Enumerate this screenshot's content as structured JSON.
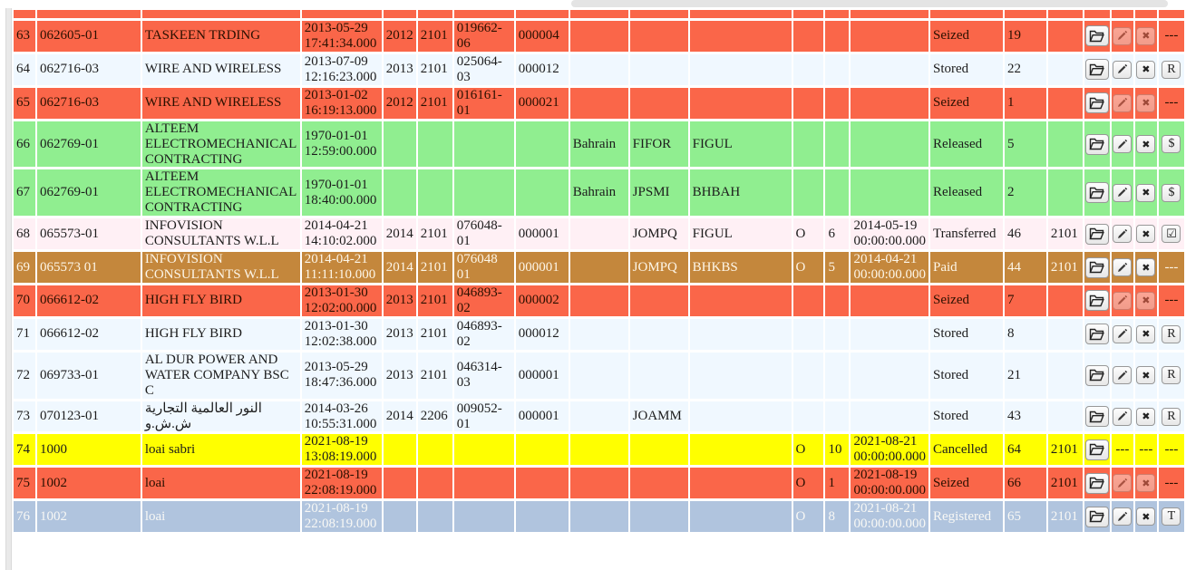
{
  "page": {
    "vertical_scrollbar": "left-vertical-scrollbar",
    "horizontal_scrollbar": "top-horizontal-scrollbar"
  },
  "table": {
    "rows": [
      {
        "partial": true,
        "num": "",
        "id": "",
        "name": "",
        "datetime": "",
        "year": "",
        "office": "",
        "ref": "",
        "item": "",
        "country": "",
        "code1": "",
        "code2": "",
        "flag": "",
        "qty": "",
        "date2": "",
        "status": "",
        "count": "",
        "extra": "",
        "row_color": "#fa6649",
        "text_color": "#1c1c1c",
        "actions": [
          {
            "type": "text",
            "label": ""
          },
          {
            "type": "text",
            "label": ""
          },
          {
            "type": "text",
            "label": ""
          },
          {
            "type": "text",
            "label": ""
          }
        ]
      },
      {
        "num": "63",
        "id": "062605-01",
        "name": "TASKEEN TRDING",
        "datetime": "2013-05-29 17:41:34.000",
        "year": "2012",
        "office": "2101",
        "ref": "019662-06",
        "item": "000004",
        "country": "",
        "code1": "",
        "code2": "",
        "flag": "",
        "qty": "",
        "date2": "",
        "status": "Seized",
        "count": "19",
        "extra": "",
        "row_color": "#fa6649",
        "text_color": "#2a1000",
        "actions": [
          {
            "type": "button",
            "icon": "folder-open-icon",
            "name": "open-folder-button",
            "disabled": false
          },
          {
            "type": "button",
            "icon": "pencil-icon",
            "name": "edit-button",
            "disabled": true
          },
          {
            "type": "button",
            "icon": "x-icon",
            "name": "delete-button",
            "disabled": true
          },
          {
            "type": "text",
            "label": "---"
          }
        ]
      },
      {
        "num": "64",
        "id": "062716-03",
        "name": "WIRE AND WIRELESS",
        "datetime": "2013-07-09 12:16:23.000",
        "year": "2013",
        "office": "2101",
        "ref": "025064-03",
        "item": "000012",
        "country": "",
        "code1": "",
        "code2": "",
        "flag": "",
        "qty": "",
        "date2": "",
        "status": "Stored",
        "count": "22",
        "extra": "",
        "row_color": "#f0f8ff",
        "text_color": "#1c1c1c",
        "actions": [
          {
            "type": "button",
            "icon": "folder-open-icon",
            "name": "open-folder-button",
            "disabled": false
          },
          {
            "type": "button",
            "icon": "pencil-icon",
            "name": "edit-button",
            "disabled": false
          },
          {
            "type": "button",
            "icon": "x-icon",
            "name": "delete-button",
            "disabled": false
          },
          {
            "type": "button",
            "icon": "r-icon",
            "name": "r-action-button",
            "disabled": false
          }
        ]
      },
      {
        "num": "65",
        "id": "062716-03",
        "name": "WIRE AND WIRELESS",
        "datetime": "2013-01-02 16:19:13.000",
        "year": "2012",
        "office": "2101",
        "ref": "016161-01",
        "item": "000021",
        "country": "",
        "code1": "",
        "code2": "",
        "flag": "",
        "qty": "",
        "date2": "",
        "status": "Seized",
        "count": "1",
        "extra": "",
        "row_color": "#fa6649",
        "text_color": "#2a1000",
        "actions": [
          {
            "type": "button",
            "icon": "folder-open-icon",
            "name": "open-folder-button",
            "disabled": false
          },
          {
            "type": "button",
            "icon": "pencil-icon",
            "name": "edit-button",
            "disabled": true
          },
          {
            "type": "button",
            "icon": "x-icon",
            "name": "delete-button",
            "disabled": true
          },
          {
            "type": "text",
            "label": "---"
          }
        ]
      },
      {
        "num": "66",
        "id": "062769-01",
        "name": "ALTEEM ELECTROMECHANICAL CONTRACTING",
        "datetime": "1970-01-01 12:59:00.000",
        "year": "",
        "office": "",
        "ref": "",
        "item": "",
        "country": "Bahrain",
        "code1": "FIFOR",
        "code2": "FIGUL",
        "flag": "",
        "qty": "",
        "date2": "",
        "status": "Released",
        "count": "5",
        "extra": "",
        "row_color": "#90ee90",
        "text_color": "#1c1c1c",
        "actions": [
          {
            "type": "button",
            "icon": "folder-open-icon",
            "name": "open-folder-button",
            "disabled": false
          },
          {
            "type": "button",
            "icon": "pencil-icon",
            "name": "edit-button",
            "disabled": false
          },
          {
            "type": "button",
            "icon": "x-icon",
            "name": "delete-button",
            "disabled": false
          },
          {
            "type": "button",
            "icon": "dollar-icon",
            "name": "payment-action-button",
            "disabled": false
          }
        ]
      },
      {
        "num": "67",
        "id": "062769-01",
        "name": "ALTEEM ELECTROMECHANICAL CONTRACTING",
        "datetime": "1970-01-01 18:40:00.000",
        "year": "",
        "office": "",
        "ref": "",
        "item": "",
        "country": "Bahrain",
        "code1": "JPSMI",
        "code2": "BHBAH",
        "flag": "",
        "qty": "",
        "date2": "",
        "status": "Released",
        "count": "2",
        "extra": "",
        "row_color": "#90ee90",
        "text_color": "#1c1c1c",
        "actions": [
          {
            "type": "button",
            "icon": "folder-open-icon",
            "name": "open-folder-button",
            "disabled": false
          },
          {
            "type": "button",
            "icon": "pencil-icon",
            "name": "edit-button",
            "disabled": false
          },
          {
            "type": "button",
            "icon": "x-icon",
            "name": "delete-button",
            "disabled": false
          },
          {
            "type": "button",
            "icon": "dollar-icon",
            "name": "payment-action-button",
            "disabled": false
          }
        ]
      },
      {
        "num": "68",
        "id": "065573-01",
        "name": "INFOVISION CONSULTANTS W.L.L",
        "datetime": "2014-04-21 14:10:02.000",
        "year": "2014",
        "office": "2101",
        "ref": "076048-01",
        "item": "000001",
        "country": "",
        "code1": "JOMPQ",
        "code2": "FIGUL",
        "flag": "O",
        "qty": "6",
        "date2": "2014-05-19 00:00:00.000",
        "status": "Transferred",
        "count": "46",
        "extra": "2101",
        "row_color": "#fff0f5",
        "text_color": "#1c1c1c",
        "actions": [
          {
            "type": "button",
            "icon": "folder-open-icon",
            "name": "open-folder-button",
            "disabled": false
          },
          {
            "type": "button",
            "icon": "pencil-icon",
            "name": "edit-button",
            "disabled": false
          },
          {
            "type": "button",
            "icon": "x-icon",
            "name": "delete-button",
            "disabled": false
          },
          {
            "type": "button",
            "icon": "check-icon",
            "name": "check-action-button",
            "disabled": false
          }
        ]
      },
      {
        "num": "69",
        "id": "065573 01",
        "name": "INFOVISION CONSULTANTS W.L.L",
        "datetime": "2014-04-21 11:11:10.000",
        "year": "2014",
        "office": "2101",
        "ref": "076048 01",
        "item": "000001",
        "country": "",
        "code1": "JOMPQ",
        "code2": "BHKBS",
        "flag": "O",
        "qty": "5",
        "date2": "2014-04-21 00:00:00.000",
        "status": "Paid",
        "count": "44",
        "extra": "2101",
        "row_color": "#c4873c",
        "text_color": "#fdf6e8",
        "actions": [
          {
            "type": "button",
            "icon": "folder-open-icon",
            "name": "open-folder-button",
            "disabled": false
          },
          {
            "type": "button",
            "icon": "pencil-icon",
            "name": "edit-button",
            "disabled": false
          },
          {
            "type": "button",
            "icon": "x-icon",
            "name": "delete-button",
            "disabled": false
          },
          {
            "type": "text",
            "label": "---"
          }
        ]
      },
      {
        "num": "70",
        "id": "066612-02",
        "name": "HIGH FLY BIRD",
        "datetime": "2013-01-30 12:02:00.000",
        "year": "2013",
        "office": "2101",
        "ref": "046893-02",
        "item": "000002",
        "country": "",
        "code1": "",
        "code2": "",
        "flag": "",
        "qty": "",
        "date2": "",
        "status": "Seized",
        "count": "7",
        "extra": "",
        "row_color": "#fa6649",
        "text_color": "#2a1000",
        "actions": [
          {
            "type": "button",
            "icon": "folder-open-icon",
            "name": "open-folder-button",
            "disabled": false
          },
          {
            "type": "button",
            "icon": "pencil-icon",
            "name": "edit-button",
            "disabled": true
          },
          {
            "type": "button",
            "icon": "x-icon",
            "name": "delete-button",
            "disabled": true
          },
          {
            "type": "text",
            "label": "---"
          }
        ]
      },
      {
        "num": "71",
        "id": "066612-02",
        "name": "HIGH FLY BIRD",
        "datetime": "2013-01-30 12:02:38.000",
        "year": "2013",
        "office": "2101",
        "ref": "046893-02",
        "item": "000012",
        "country": "",
        "code1": "",
        "code2": "",
        "flag": "",
        "qty": "",
        "date2": "",
        "status": "Stored",
        "count": "8",
        "extra": "",
        "row_color": "#f0f8ff",
        "text_color": "#1c1c1c",
        "actions": [
          {
            "type": "button",
            "icon": "folder-open-icon",
            "name": "open-folder-button",
            "disabled": false
          },
          {
            "type": "button",
            "icon": "pencil-icon",
            "name": "edit-button",
            "disabled": false
          },
          {
            "type": "button",
            "icon": "x-icon",
            "name": "delete-button",
            "disabled": false
          },
          {
            "type": "button",
            "icon": "r-icon",
            "name": "r-action-button",
            "disabled": false
          }
        ]
      },
      {
        "num": "72",
        "id": "069733-01",
        "name": "AL DUR POWER AND WATER COMPANY BSC C",
        "datetime": "2013-05-29 18:47:36.000",
        "year": "2013",
        "office": "2101",
        "ref": "046314-03",
        "item": "000001",
        "country": "",
        "code1": "",
        "code2": "",
        "flag": "",
        "qty": "",
        "date2": "",
        "status": "Stored",
        "count": "21",
        "extra": "",
        "row_color": "#f0f8ff",
        "text_color": "#1c1c1c",
        "actions": [
          {
            "type": "button",
            "icon": "folder-open-icon",
            "name": "open-folder-button",
            "disabled": false
          },
          {
            "type": "button",
            "icon": "pencil-icon",
            "name": "edit-button",
            "disabled": false
          },
          {
            "type": "button",
            "icon": "x-icon",
            "name": "delete-button",
            "disabled": false
          },
          {
            "type": "button",
            "icon": "r-icon",
            "name": "r-action-button",
            "disabled": false
          }
        ]
      },
      {
        "num": "73",
        "id": "070123-01",
        "name": "النور العالمية التجارية ش.ش.و",
        "datetime": "2014-03-26 10:55:31.000",
        "year": "2014",
        "office": "2206",
        "ref": "009052-01",
        "item": "000001",
        "country": "",
        "code1": "JOAMM",
        "code2": "",
        "flag": "",
        "qty": "",
        "date2": "",
        "status": "Stored",
        "count": "43",
        "extra": "",
        "row_color": "#f0f8ff",
        "text_color": "#1c1c1c",
        "actions": [
          {
            "type": "button",
            "icon": "folder-open-icon",
            "name": "open-folder-button",
            "disabled": false
          },
          {
            "type": "button",
            "icon": "pencil-icon",
            "name": "edit-button",
            "disabled": false
          },
          {
            "type": "button",
            "icon": "x-icon",
            "name": "delete-button",
            "disabled": false
          },
          {
            "type": "button",
            "icon": "r-icon",
            "name": "r-action-button",
            "disabled": false
          }
        ]
      },
      {
        "num": "74",
        "id": "1000",
        "name": "loai sabri",
        "datetime": "2021-08-19 13:08:19.000",
        "year": "",
        "office": "",
        "ref": "",
        "item": "",
        "country": "",
        "code1": "",
        "code2": "",
        "flag": "O",
        "qty": "10",
        "date2": "2021-08-21 00:00:00.000",
        "status": "Cancelled",
        "count": "64",
        "extra": "2101",
        "row_color": "#ffff00",
        "text_color": "#1c1c1c",
        "actions": [
          {
            "type": "button",
            "icon": "folder-open-icon",
            "name": "open-folder-button",
            "disabled": false
          },
          {
            "type": "text",
            "label": "---"
          },
          {
            "type": "text",
            "label": "---"
          },
          {
            "type": "text",
            "label": "---"
          }
        ]
      },
      {
        "num": "75",
        "id": "1002",
        "name": "loai",
        "datetime": "2021-08-19 22:08:19.000",
        "year": "",
        "office": "",
        "ref": "",
        "item": "",
        "country": "",
        "code1": "",
        "code2": "",
        "flag": "O",
        "qty": "1",
        "date2": "2021-08-19 00:00:00.000",
        "status": "Seized",
        "count": "66",
        "extra": "2101",
        "row_color": "#fa6649",
        "text_color": "#2a1000",
        "actions": [
          {
            "type": "button",
            "icon": "folder-open-icon",
            "name": "open-folder-button",
            "disabled": false
          },
          {
            "type": "button",
            "icon": "pencil-icon",
            "name": "edit-button",
            "disabled": true
          },
          {
            "type": "button",
            "icon": "x-icon",
            "name": "delete-button",
            "disabled": true
          },
          {
            "type": "text",
            "label": "---"
          }
        ]
      },
      {
        "num": "76",
        "id": "1002",
        "name": "loai",
        "datetime": "2021-08-19 22:08:19.000",
        "year": "",
        "office": "",
        "ref": "",
        "item": "",
        "country": "",
        "code1": "",
        "code2": "",
        "flag": "O",
        "qty": "8",
        "date2": "2021-08-21 00:00:00.000",
        "status": "Registered",
        "count": "65",
        "extra": "2101",
        "row_color": "#b0c4de",
        "text_color": "#f8f8f5",
        "actions": [
          {
            "type": "button",
            "icon": "folder-open-icon",
            "name": "open-folder-button",
            "disabled": false
          },
          {
            "type": "button",
            "icon": "pencil-icon",
            "name": "edit-button",
            "disabled": false
          },
          {
            "type": "button",
            "icon": "x-icon",
            "name": "delete-button",
            "disabled": false
          },
          {
            "type": "button",
            "icon": "t-icon",
            "name": "t-action-button",
            "disabled": false
          }
        ]
      }
    ]
  }
}
